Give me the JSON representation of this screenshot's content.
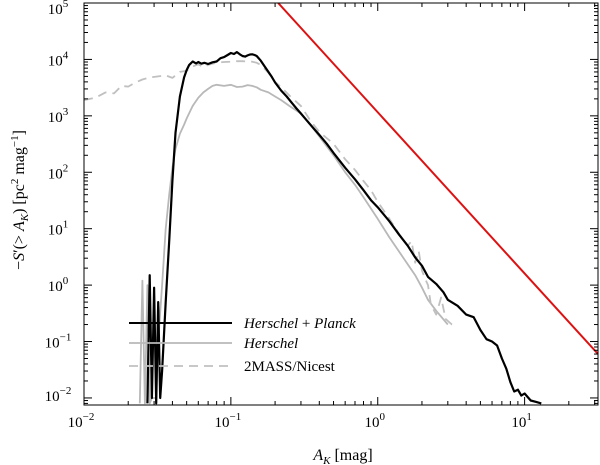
{
  "chart_data": {
    "type": "line",
    "title": "",
    "xlabel": "A_K [mag]",
    "ylabel": "−S′(> A_K) [pc² mag⁻¹]",
    "xscale": "log",
    "yscale": "log",
    "xlim": [
      0.01,
      31.6
    ],
    "ylim": [
      0.0075,
      100000
    ],
    "grid": false,
    "legend_position": "bottom-left",
    "x_ticks": [
      {
        "value": 0.01,
        "base": "10",
        "exp": "−2"
      },
      {
        "value": 0.1,
        "base": "10",
        "exp": "−1"
      },
      {
        "value": 1,
        "base": "10",
        "exp": "0"
      },
      {
        "value": 10,
        "base": "10",
        "exp": "1"
      }
    ],
    "y_ticks": [
      {
        "value": 0.01,
        "base": "10",
        "exp": "−2"
      },
      {
        "value": 0.1,
        "base": "10",
        "exp": "−1"
      },
      {
        "value": 1,
        "base": "10",
        "exp": "0"
      },
      {
        "value": 10,
        "base": "10",
        "exp": "1"
      },
      {
        "value": 100,
        "base": "10",
        "exp": "2"
      },
      {
        "value": 1000,
        "base": "10",
        "exp": "3"
      },
      {
        "value": 10000,
        "base": "10",
        "exp": "4"
      },
      {
        "value": 100000,
        "base": "10",
        "exp": "5"
      }
    ],
    "series": [
      {
        "name": "Herschel + Planck",
        "color": "#000000",
        "style": "solid",
        "x": [
          0.027,
          0.028,
          0.029,
          0.03,
          0.031,
          0.032,
          0.033,
          0.034,
          0.036,
          0.038,
          0.04,
          0.042,
          0.045,
          0.048,
          0.05,
          0.052,
          0.055,
          0.058,
          0.06,
          0.063,
          0.066,
          0.07,
          0.075,
          0.08,
          0.085,
          0.09,
          0.095,
          0.1,
          0.105,
          0.11,
          0.115,
          0.12,
          0.125,
          0.13,
          0.135,
          0.14,
          0.145,
          0.15,
          0.16,
          0.17,
          0.18,
          0.19,
          0.2,
          0.22,
          0.24,
          0.26,
          0.28,
          0.3,
          0.33,
          0.37,
          0.4,
          0.45,
          0.5,
          0.55,
          0.6,
          0.7,
          0.8,
          0.9,
          1.0,
          1.2,
          1.4,
          1.6,
          1.8,
          2.0,
          2.2,
          2.5,
          2.8,
          3.0,
          3.5,
          4.0,
          4.5,
          5.0,
          5.5,
          6.0,
          6.5,
          7.0,
          7.5,
          8.0,
          8.5,
          9.0,
          9.5,
          10.0,
          11.0,
          12.0,
          13.0
        ],
        "y": [
          0.008,
          1.5,
          0.01,
          0.9,
          0.008,
          0.5,
          0.01,
          0.03,
          0.5,
          6,
          70,
          500,
          2200,
          4800,
          6500,
          8000,
          9200,
          8500,
          9000,
          8400,
          8700,
          8300,
          8900,
          9200,
          10500,
          11000,
          12000,
          13000,
          12500,
          13500,
          12300,
          11500,
          11200,
          11800,
          12200,
          12300,
          12000,
          11500,
          9500,
          7500,
          6000,
          4900,
          3900,
          2800,
          2200,
          1700,
          1350,
          1100,
          820,
          580,
          460,
          320,
          220,
          160,
          120,
          75,
          48,
          32,
          24,
          13.5,
          7.8,
          5.0,
          3.1,
          2.2,
          1.4,
          1.05,
          0.75,
          0.55,
          0.43,
          0.3,
          0.27,
          0.16,
          0.11,
          0.1,
          0.085,
          0.05,
          0.033,
          0.019,
          0.013,
          0.014,
          0.011,
          0.012,
          0.009,
          0.0085,
          0.008
        ]
      },
      {
        "name": "Herschel",
        "color": "#b8b8b8",
        "style": "solid",
        "x": [
          0.024,
          0.025,
          0.026,
          0.027,
          0.028,
          0.029,
          0.03,
          0.031,
          0.032,
          0.034,
          0.036,
          0.038,
          0.04,
          0.042,
          0.045,
          0.048,
          0.05,
          0.055,
          0.06,
          0.065,
          0.07,
          0.075,
          0.08,
          0.09,
          0.1,
          0.11,
          0.12,
          0.13,
          0.14,
          0.15,
          0.16,
          0.18,
          0.2,
          0.22,
          0.25,
          0.3,
          0.35,
          0.4,
          0.5,
          0.6,
          0.7,
          0.8,
          1.0,
          1.2,
          1.5,
          1.8,
          2.0,
          2.2,
          2.5,
          3.0
        ],
        "y": [
          0.008,
          1.2,
          0.008,
          1.0,
          0.008,
          0.01,
          0.01,
          0.01,
          0.1,
          1,
          10,
          40,
          120,
          260,
          480,
          700,
          900,
          1500,
          2100,
          2600,
          3000,
          3400,
          3550,
          3400,
          3550,
          3250,
          3300,
          3500,
          3400,
          3200,
          2900,
          2600,
          2200,
          1900,
          1500,
          1100,
          680,
          430,
          200,
          100,
          60,
          36,
          15,
          7,
          3,
          1.5,
          0.9,
          0.55,
          0.35,
          0.2
        ]
      },
      {
        "name": "2MASS/Nicest",
        "color": "#c0c0c0",
        "style": "dashed",
        "x": [
          0.01,
          0.012,
          0.014,
          0.016,
          0.018,
          0.02,
          0.022,
          0.025,
          0.028,
          0.032,
          0.036,
          0.04,
          0.045,
          0.05,
          0.055,
          0.06,
          0.065,
          0.07,
          0.08,
          0.09,
          0.1,
          0.11,
          0.12,
          0.13,
          0.14,
          0.15,
          0.16,
          0.18,
          0.2,
          0.22,
          0.25,
          0.3,
          0.35,
          0.4,
          0.5,
          0.6,
          0.7,
          0.8,
          0.9,
          1.0,
          1.2,
          1.4,
          1.6,
          1.7,
          1.8,
          1.9,
          2.0,
          2.1,
          2.2,
          2.3,
          2.5,
          2.7,
          2.9,
          3.2,
          3.5
        ],
        "y": [
          1900,
          2100,
          2600,
          2500,
          3400,
          3300,
          3800,
          4400,
          4800,
          5000,
          5200,
          4700,
          6000,
          6300,
          7500,
          8200,
          7300,
          8000,
          8800,
          9000,
          9100,
          9300,
          9300,
          9200,
          9100,
          8700,
          8000,
          5800,
          4000,
          3200,
          2300,
          1500,
          800,
          520,
          320,
          170,
          110,
          70,
          48,
          30,
          15,
          8,
          5,
          6,
          2.5,
          4,
          1.8,
          1.3,
          1.0,
          0.45,
          0.3,
          0.6,
          0.25,
          0.2,
          0.2
        ]
      },
      {
        "name": "",
        "color": "#dd1111",
        "style": "solid",
        "x": [
          0.21,
          31.6
        ],
        "y": [
          100000,
          0.06
        ]
      }
    ]
  }
}
